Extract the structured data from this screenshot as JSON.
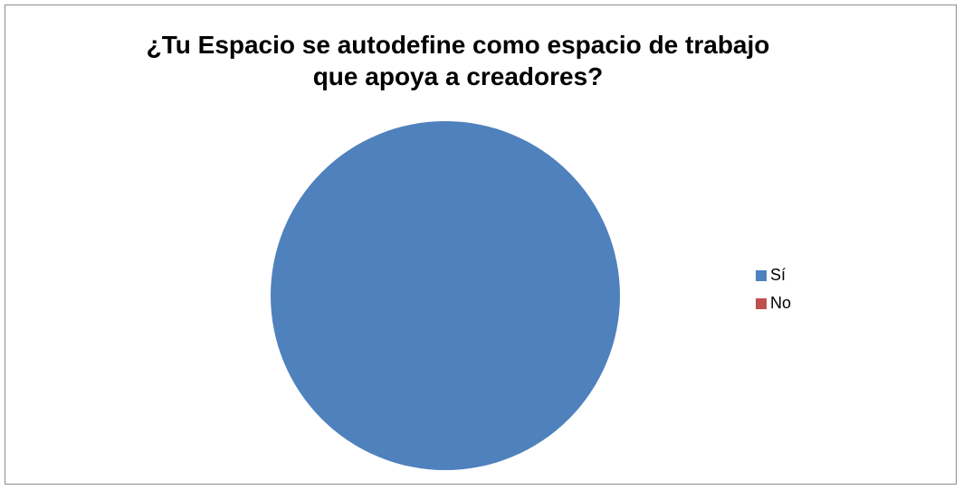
{
  "chart_data": {
    "type": "pie",
    "title": "¿Tu Espacio se autodefine como espacio de trabajo\nque apoya a creadores?",
    "categories": [
      "Sí",
      "No"
    ],
    "values": [
      100,
      0
    ],
    "colors": [
      "#4f81bd",
      "#c0504d"
    ],
    "legend": "right"
  }
}
